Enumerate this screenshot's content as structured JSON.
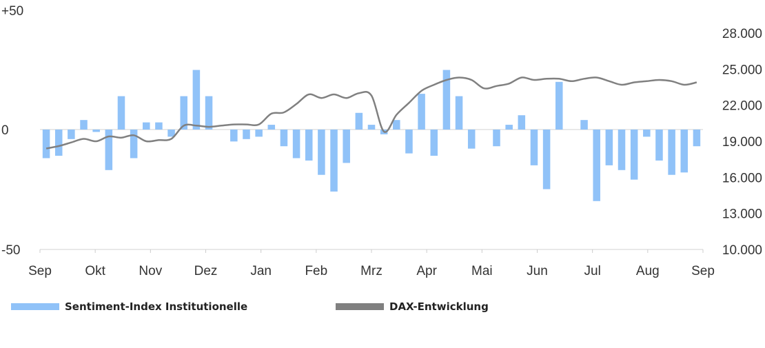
{
  "chart_data": {
    "type": "bar+line",
    "x_labels": [
      "Sep",
      "Okt",
      "Nov",
      "Dez",
      "Jan",
      "Feb",
      "Mrz",
      "Apr",
      "Mai",
      "Jun",
      "Jul",
      "Aug",
      "Sep"
    ],
    "left_axis": {
      "range": [
        -50,
        50
      ],
      "ticks": [
        "+50",
        "0",
        "-50"
      ]
    },
    "right_axis": {
      "range": [
        10000,
        28000
      ],
      "ticks": [
        "28.000",
        "25.000",
        "22.000",
        "19.000",
        "16.000",
        "13.000",
        "10.000"
      ]
    },
    "series": [
      {
        "name": "Sentiment-Index Institutionelle",
        "type": "bar",
        "color": "#90c2f8",
        "values": [
          -12,
          -11,
          -4,
          4,
          -1,
          -17,
          14,
          -12,
          3,
          3,
          -3,
          14,
          25,
          14,
          0,
          -5,
          -4,
          -3,
          2,
          -7,
          -12,
          -13,
          -19,
          -26,
          -14,
          7,
          2,
          -2,
          4,
          -10,
          15,
          -11,
          25,
          14,
          -8,
          0,
          -7,
          2,
          6,
          -15,
          -25,
          20,
          0,
          4,
          -30,
          -15,
          -17,
          -21,
          -3,
          -13,
          -19,
          -18,
          -7
        ]
      },
      {
        "name": "DAX-Entwicklung",
        "type": "line",
        "color": "#808080",
        "x": [
          0,
          1,
          2,
          3,
          4,
          5,
          6,
          7,
          8,
          9,
          10,
          11,
          12,
          13,
          14,
          15,
          16,
          17,
          18,
          19,
          20,
          21,
          22,
          23,
          24,
          25,
          26,
          27,
          28,
          29,
          30,
          31,
          32,
          33,
          34,
          35,
          36,
          37,
          38,
          39,
          40,
          41,
          42,
          43,
          44,
          45,
          46,
          47,
          48,
          49,
          50,
          51,
          52
        ],
        "values": [
          18400,
          18600,
          18900,
          19200,
          19000,
          19400,
          19300,
          19500,
          19000,
          19100,
          19200,
          20300,
          20300,
          20200,
          20300,
          20400,
          20400,
          20400,
          21300,
          21400,
          22100,
          22900,
          22600,
          22900,
          22600,
          23000,
          22800,
          19800,
          21200,
          22200,
          23200,
          23700,
          24100,
          24300,
          24100,
          23400,
          23600,
          23800,
          24300,
          24100,
          24200,
          24200,
          24000,
          24200,
          24300,
          24000,
          23700,
          23900,
          24000,
          24100,
          24000,
          23700,
          23900
        ]
      }
    ],
    "legend_position": "bottom",
    "grid": false
  }
}
